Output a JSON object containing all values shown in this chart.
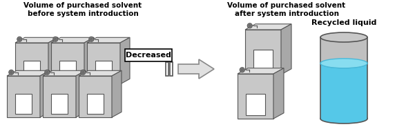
{
  "title_left": "Volume of purchased solvent\nbefore system introduction",
  "title_right": "Volume of purchased solvent\nafter system introduction",
  "label_middle": "Decreased",
  "label_recycled": "Recycled liquid",
  "bg_color": "#ffffff",
  "canister_face_color": "#c8c8c8",
  "canister_top_color": "#e0e0e0",
  "canister_side_color": "#a8a8a8",
  "canister_edge_color": "#555555",
  "window_color": "#ffffff",
  "beaker_body_color": "#b8b8b8",
  "beaker_liquid_color": "#55c8e8",
  "beaker_top_color": "#c0c0c0",
  "arrow_color": "#e0e0e0",
  "arrow_edge_color": "#888888",
  "text_color": "#000000",
  "box_edge_color": "#000000"
}
